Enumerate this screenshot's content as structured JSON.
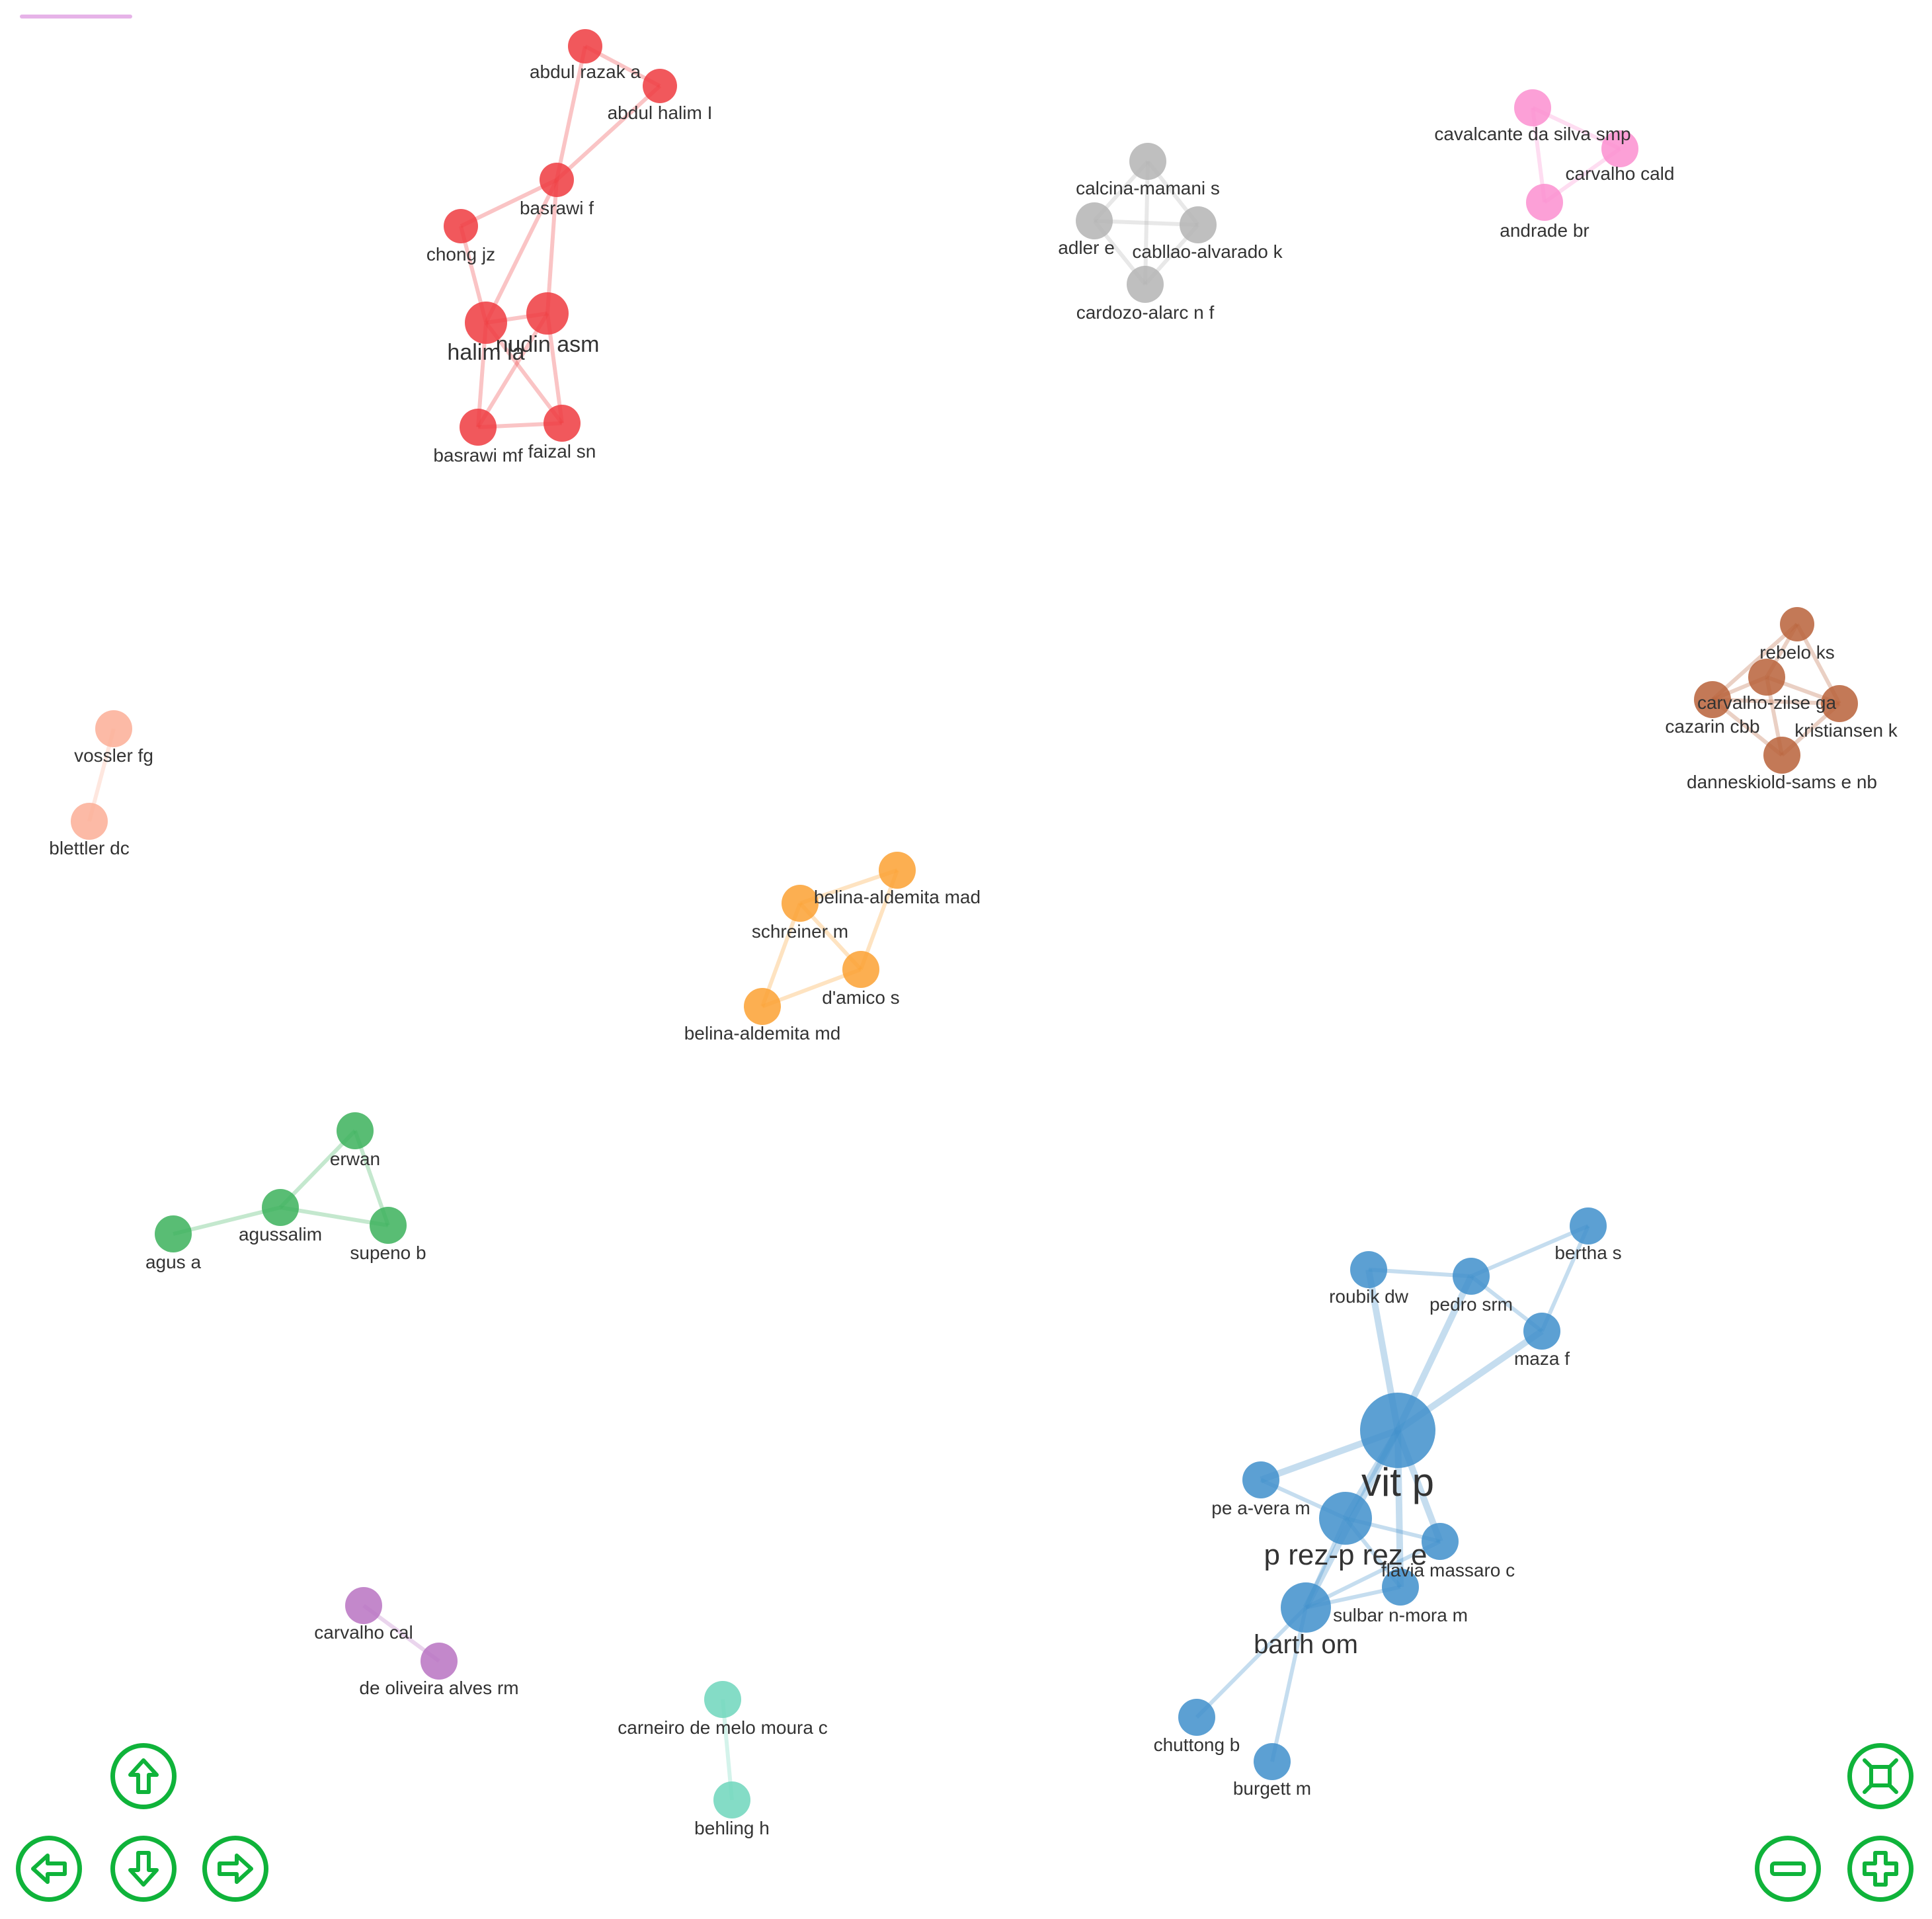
{
  "colors": {
    "red": "#ef3b3f",
    "gray": "#b4b4b4",
    "pink": "#fb8fd0",
    "brown": "#b8623a",
    "salmon": "#fbae96",
    "orange": "#fba133",
    "green": "#3cb25c",
    "purple": "#b873c2",
    "teal": "#6fd6bc",
    "blue": "#3f8fcb",
    "nav": "#0fb33a"
  },
  "nodes": [
    {
      "id": "abdul_razak_a",
      "label": "abdul razak a",
      "cluster": "red"
    },
    {
      "id": "abdul_halim_i",
      "label": "abdul halim I",
      "cluster": "red"
    },
    {
      "id": "basrawi_f",
      "label": "basrawi f",
      "cluster": "red"
    },
    {
      "id": "chong_jz",
      "label": "chong jz",
      "cluster": "red"
    },
    {
      "id": "halim_la",
      "label": "halim la",
      "cluster": "red"
    },
    {
      "id": "nudin_asm",
      "label": "nudin asm",
      "cluster": "red"
    },
    {
      "id": "basrawi_m",
      "label": "basrawi mf",
      "cluster": "red"
    },
    {
      "id": "faizal_sn",
      "label": "faizal sn",
      "cluster": "red"
    },
    {
      "id": "calcina",
      "label": "calcina-mamani s",
      "cluster": "gray"
    },
    {
      "id": "adler",
      "label": "adler e",
      "cluster": "gray"
    },
    {
      "id": "cabllao",
      "label": "cabllao-alvarado k",
      "cluster": "gray"
    },
    {
      "id": "cardozo",
      "label": "cardozo-alarc n f",
      "cluster": "gray"
    },
    {
      "id": "cavalcante",
      "label": "cavalcante da silva smp",
      "cluster": "pink"
    },
    {
      "id": "carvalho_cald",
      "label": "carvalho cald",
      "cluster": "pink"
    },
    {
      "id": "andrade",
      "label": "andrade br",
      "cluster": "pink"
    },
    {
      "id": "rebelo",
      "label": "rebelo ks",
      "cluster": "brown"
    },
    {
      "id": "carvalho_zilse",
      "label": "carvalho-zilse ga",
      "cluster": "brown"
    },
    {
      "id": "cazarin",
      "label": "cazarin cbb",
      "cluster": "brown"
    },
    {
      "id": "kristiansen",
      "label": "kristiansen k",
      "cluster": "brown"
    },
    {
      "id": "danneskiold",
      "label": "danneskiold-sams e nb",
      "cluster": "brown"
    },
    {
      "id": "vossler",
      "label": "vossler fg",
      "cluster": "salmon"
    },
    {
      "id": "blettler",
      "label": "blettler dc",
      "cluster": "salmon"
    },
    {
      "id": "belina_mad",
      "label": "belina-aldemita mad",
      "cluster": "orange"
    },
    {
      "id": "schreiner",
      "label": "schreiner m",
      "cluster": "orange"
    },
    {
      "id": "damico",
      "label": "d'amico s",
      "cluster": "orange"
    },
    {
      "id": "belina_md",
      "label": "belina-aldemita md",
      "cluster": "orange"
    },
    {
      "id": "erwan",
      "label": "erwan",
      "cluster": "green"
    },
    {
      "id": "agussalim",
      "label": "agussalim",
      "cluster": "green"
    },
    {
      "id": "supeno",
      "label": "supeno b",
      "cluster": "green"
    },
    {
      "id": "agus_a",
      "label": "agus a",
      "cluster": "green"
    },
    {
      "id": "carvalho_cal",
      "label": "carvalho cal",
      "cluster": "purple"
    },
    {
      "id": "de_oliveira",
      "label": "de oliveira alves rm",
      "cluster": "purple"
    },
    {
      "id": "carneiro",
      "label": "carneiro de melo moura c",
      "cluster": "teal"
    },
    {
      "id": "behling",
      "label": "behling h",
      "cluster": "teal"
    },
    {
      "id": "bertha",
      "label": "bertha s",
      "cluster": "blue"
    },
    {
      "id": "roubik",
      "label": "roubik dw",
      "cluster": "blue"
    },
    {
      "id": "pedro",
      "label": "pedro srm",
      "cluster": "blue"
    },
    {
      "id": "maza",
      "label": "maza f",
      "cluster": "blue"
    },
    {
      "id": "vit_p",
      "label": "vit p",
      "cluster": "blue",
      "size": "xl"
    },
    {
      "id": "pe_a_vera",
      "label": "pe a-vera m",
      "cluster": "blue"
    },
    {
      "id": "perez",
      "label": "p rez-p rez e",
      "cluster": "blue",
      "size": "l"
    },
    {
      "id": "flavia",
      "label": "flavia massaro c",
      "cluster": "blue"
    },
    {
      "id": "sulbar",
      "label": "sulbar n-mora m",
      "cluster": "blue"
    },
    {
      "id": "barth",
      "label": "barth om",
      "cluster": "blue",
      "size": "l"
    },
    {
      "id": "chuttong",
      "label": "chuttong b",
      "cluster": "blue"
    },
    {
      "id": "burgett",
      "label": "burgett m",
      "cluster": "blue"
    }
  ],
  "edges": [
    [
      "abdul_razak_a",
      "abdul_halim_i"
    ],
    [
      "abdul_razak_a",
      "basrawi_f"
    ],
    [
      "abdul_halim_i",
      "basrawi_f"
    ],
    [
      "basrawi_f",
      "chong_jz"
    ],
    [
      "basrawi_f",
      "halim_la"
    ],
    [
      "basrawi_f",
      "nudin_asm"
    ],
    [
      "chong_jz",
      "halim_la"
    ],
    [
      "halim_la",
      "nudin_asm"
    ],
    [
      "halim_la",
      "basrawi_m"
    ],
    [
      "halim_la",
      "faizal_sn"
    ],
    [
      "nudin_asm",
      "basrawi_m"
    ],
    [
      "nudin_asm",
      "faizal_sn"
    ],
    [
      "basrawi_m",
      "faizal_sn"
    ],
    [
      "calcina",
      "adler"
    ],
    [
      "calcina",
      "cabllao"
    ],
    [
      "calcina",
      "cardozo"
    ],
    [
      "adler",
      "cabllao"
    ],
    [
      "adler",
      "cardozo"
    ],
    [
      "cabllao",
      "cardozo"
    ],
    [
      "cavalcante",
      "carvalho_cald"
    ],
    [
      "cavalcante",
      "andrade"
    ],
    [
      "carvalho_cald",
      "andrade"
    ],
    [
      "rebelo",
      "carvalho_zilse"
    ],
    [
      "rebelo",
      "cazarin"
    ],
    [
      "rebelo",
      "kristiansen"
    ],
    [
      "carvalho_zilse",
      "cazarin"
    ],
    [
      "carvalho_zilse",
      "kristiansen"
    ],
    [
      "carvalho_zilse",
      "danneskiold"
    ],
    [
      "cazarin",
      "danneskiold"
    ],
    [
      "kristiansen",
      "danneskiold"
    ],
    [
      "cazarin",
      "kristiansen"
    ],
    [
      "vossler",
      "blettler"
    ],
    [
      "belina_mad",
      "schreiner"
    ],
    [
      "belina_mad",
      "damico"
    ],
    [
      "schreiner",
      "damico"
    ],
    [
      "schreiner",
      "belina_md"
    ],
    [
      "damico",
      "belina_md"
    ],
    [
      "erwan",
      "agussalim"
    ],
    [
      "erwan",
      "supeno"
    ],
    [
      "agussalim",
      "supeno"
    ],
    [
      "agussalim",
      "agus_a"
    ],
    [
      "carvalho_cal",
      "de_oliveira"
    ],
    [
      "carneiro",
      "behling"
    ],
    [
      "bertha",
      "pedro"
    ],
    [
      "bertha",
      "maza"
    ],
    [
      "roubik",
      "pedro"
    ],
    [
      "roubik",
      "vit_p"
    ],
    [
      "pedro",
      "vit_p"
    ],
    [
      "pedro",
      "maza"
    ],
    [
      "maza",
      "vit_p"
    ],
    [
      "vit_p",
      "pe_a_vera"
    ],
    [
      "vit_p",
      "perez"
    ],
    [
      "vit_p",
      "flavia"
    ],
    [
      "vit_p",
      "sulbar"
    ],
    [
      "vit_p",
      "barth"
    ],
    [
      "pe_a_vera",
      "perez"
    ],
    [
      "perez",
      "flavia"
    ],
    [
      "perez",
      "sulbar"
    ],
    [
      "perez",
      "barth"
    ],
    [
      "barth",
      "sulbar"
    ],
    [
      "barth",
      "flavia"
    ],
    [
      "barth",
      "chuttong"
    ],
    [
      "barth",
      "burgett"
    ]
  ],
  "controls": {
    "pan_up": "arrow-up",
    "pan_left": "arrow-left",
    "pan_down": "arrow-down",
    "pan_right": "arrow-right",
    "fit": "fit-to-screen",
    "zoom_out": "minus",
    "zoom_in": "plus"
  }
}
